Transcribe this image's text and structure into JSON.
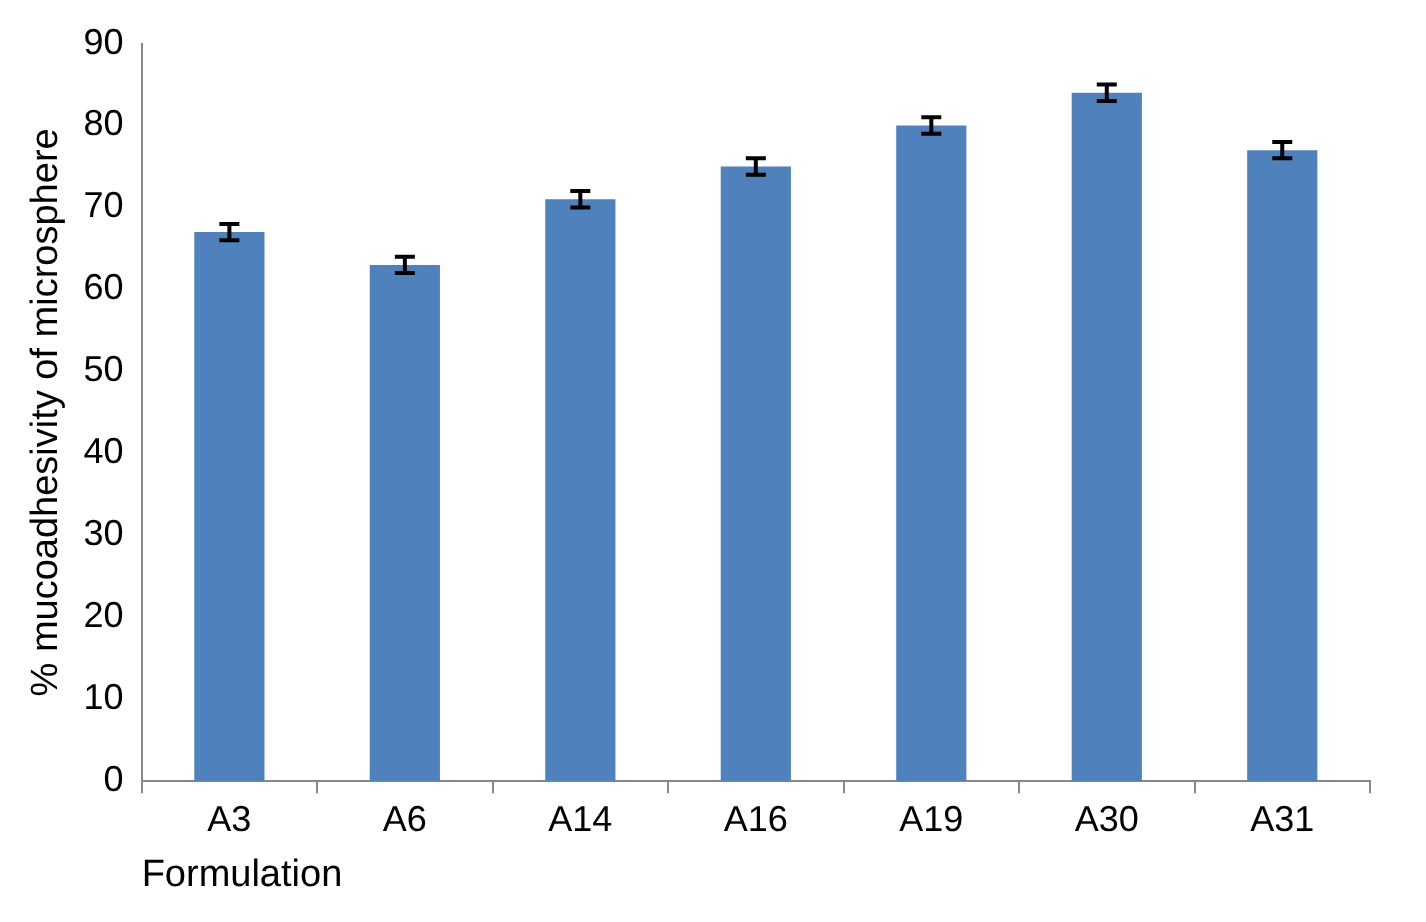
{
  "chart_data": {
    "type": "bar",
    "xlabel": "Formulation",
    "ylabel": "% mucoadhesivity of microsphere",
    "categories": [
      "A3",
      "A6",
      "A14",
      "A16",
      "A19",
      "A30",
      "A31"
    ],
    "values": [
      67,
      63,
      71,
      75,
      80,
      84,
      77
    ],
    "errors": [
      1,
      1,
      1,
      1,
      1,
      1,
      1
    ],
    "color": "#4f81bd",
    "ylim": [
      0,
      90
    ],
    "yticks": [
      0,
      10,
      20,
      30,
      40,
      50,
      60,
      70,
      80,
      90
    ],
    "grid": false,
    "legend": false
  }
}
